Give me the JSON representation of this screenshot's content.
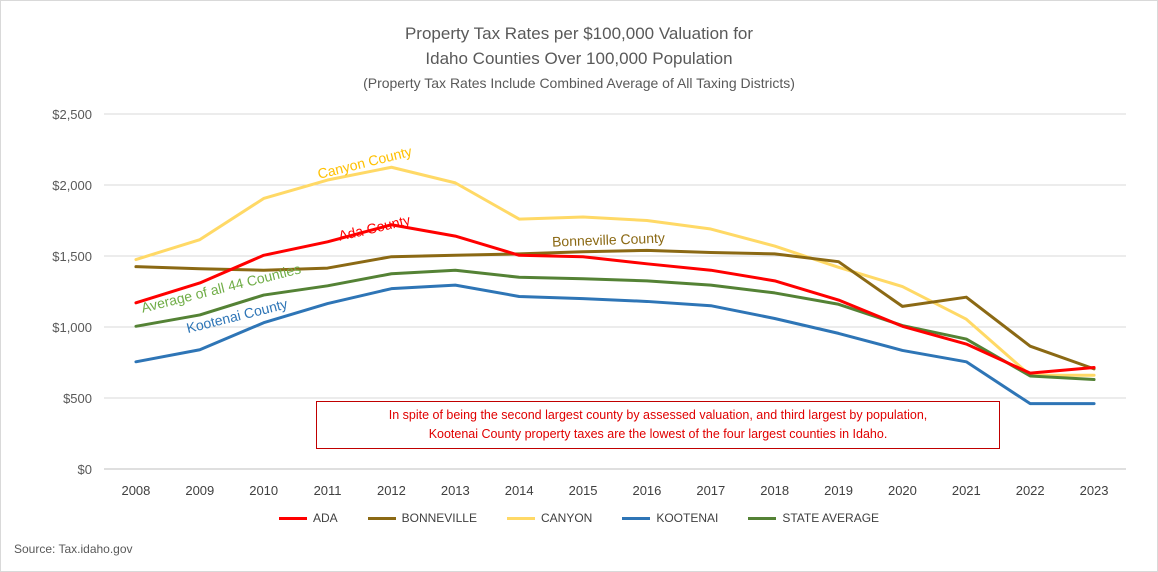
{
  "chart_data": {
    "type": "line",
    "title": "Property Tax Rates per $100,000 Valuation for",
    "title_line2": "Idaho Counties Over 100,000 Population",
    "subtitle": "(Property Tax Rates Include Combined Average of All Taxing Districts)",
    "xlabel": "",
    "ylabel": "",
    "ylim": [
      0,
      2500
    ],
    "y_ticks": [
      0,
      500,
      1000,
      1500,
      2000,
      2500
    ],
    "y_tick_labels": [
      "$0",
      "$500",
      "$1,000",
      "$1,500",
      "$2,000",
      "$2,500"
    ],
    "categories": [
      "2008",
      "2009",
      "2010",
      "2011",
      "2012",
      "2013",
      "2014",
      "2015",
      "2016",
      "2017",
      "2018",
      "2019",
      "2020",
      "2021",
      "2022",
      "2023"
    ],
    "grid": true,
    "legend_position": "bottom",
    "series": [
      {
        "name": "ADA",
        "color": "#ff0000",
        "values": [
          1170,
          1310,
          1505,
          1600,
          1720,
          1640,
          1505,
          1495,
          1445,
          1400,
          1325,
          1190,
          1005,
          880,
          675,
          715
        ]
      },
      {
        "name": "BONNEVILLE",
        "color": "#8b6914",
        "values": [
          1425,
          1410,
          1400,
          1415,
          1495,
          1505,
          1515,
          1530,
          1540,
          1525,
          1515,
          1460,
          1145,
          1210,
          865,
          705
        ]
      },
      {
        "name": "CANYON",
        "color": "#ffd966",
        "values": [
          1475,
          1615,
          1905,
          2035,
          2125,
          2015,
          1760,
          1775,
          1750,
          1690,
          1570,
          1420,
          1285,
          1055,
          660,
          660
        ]
      },
      {
        "name": "KOOTENAI",
        "color": "#2e75b6",
        "values": [
          755,
          840,
          1030,
          1165,
          1270,
          1295,
          1215,
          1200,
          1180,
          1150,
          1060,
          955,
          835,
          755,
          460,
          460
        ]
      },
      {
        "name": "STATE AVERAGE",
        "color": "#548235",
        "values": [
          1005,
          1085,
          1225,
          1290,
          1375,
          1400,
          1350,
          1340,
          1325,
          1295,
          1240,
          1160,
          1010,
          915,
          655,
          630
        ]
      }
    ],
    "annotations": [
      {
        "text": "Canyon County",
        "color": "#ffc000",
        "x_index": 3.6,
        "y": 2125,
        "angle": -14,
        "series": "CANYON"
      },
      {
        "text": "Ada County",
        "color": "#ff0000",
        "x_index": 3.75,
        "y": 1665,
        "angle": -13,
        "series": "ADA"
      },
      {
        "text": "Bonneville County",
        "color": "#8b6914",
        "x_index": 7.4,
        "y": 1580,
        "angle": -2,
        "series": "BONNEVILLE"
      },
      {
        "text": "Average of all 44 Counties",
        "color": "#70ad47",
        "x_index": 1.35,
        "y": 1240,
        "angle": -14,
        "series": "STATE AVERAGE"
      },
      {
        "text": "Kootenai County",
        "color": "#2e75b6",
        "x_index": 1.6,
        "y": 1045,
        "angle": -14,
        "series": "KOOTENAI"
      }
    ],
    "callout": {
      "line1": "In spite of being the second largest county by assessed valuation, and third largest by population,",
      "line2": "Kootenai County property taxes are the lowest of the four largest counties in Idaho."
    }
  },
  "source": "Source:  Tax.idaho.gov"
}
